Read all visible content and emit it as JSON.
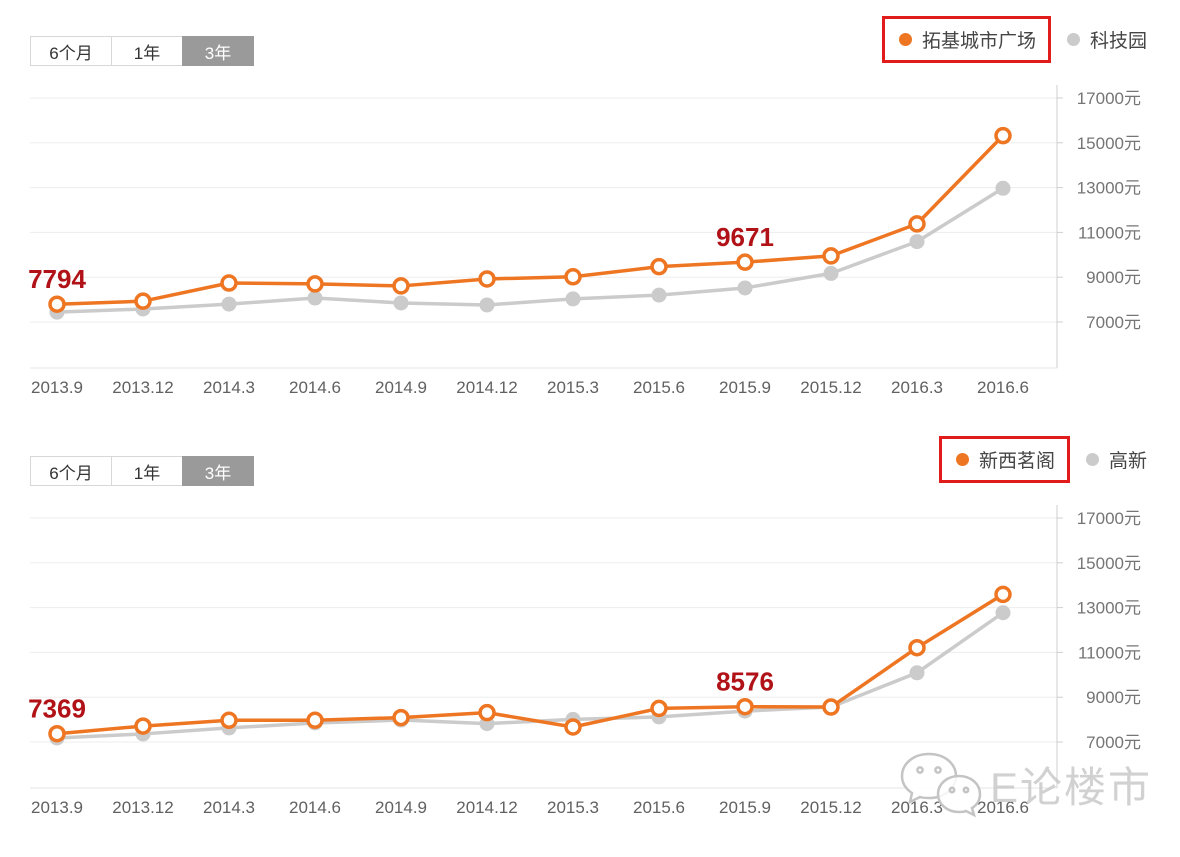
{
  "colors": {
    "primary_series": "#ee7623",
    "secondary_series": "#cbcbcb",
    "annotation_text": "#b01217",
    "highlight_box": "#e21b1b",
    "selected_tab_bg": "#9a9a9a"
  },
  "watermark": {
    "text": "E论楼市",
    "icon": "wechat-logo"
  },
  "charts": [
    {
      "tabs": {
        "options": [
          "6个月",
          "1年",
          "3年"
        ],
        "selected_index": 2
      },
      "legend": [
        {
          "label": "拓基城市广场",
          "color": "#ee7623",
          "highlighted": true
        },
        {
          "label": "科技园",
          "color": "#cbcbcb",
          "highlighted": false
        }
      ],
      "chart_data": {
        "type": "line",
        "x": [
          "2013.9",
          "2013.12",
          "2014.3",
          "2014.6",
          "2014.9",
          "2014.12",
          "2015.3",
          "2015.6",
          "2015.9",
          "2015.12",
          "2016.3",
          "2016.6"
        ],
        "y_ticks": [
          17000,
          15000,
          13000,
          11000,
          9000,
          7000
        ],
        "y_tick_labels": [
          "17000元",
          "15000元",
          "13000元",
          "11000元",
          "9000元",
          "7000元"
        ],
        "ylim": [
          5000,
          17600
        ],
        "y_axis_position": "right",
        "grid": true,
        "series": [
          {
            "name": "科技园",
            "color": "#cbcbcb",
            "marker": "filled",
            "values": [
              7440,
              7580,
              7800,
              8070,
              7850,
              7760,
              8030,
              8200,
              8520,
              9170,
              10590,
              12970
            ]
          },
          {
            "name": "拓基城市广场",
            "color": "#ee7623",
            "marker": "hollow",
            "values": [
              7794,
              7930,
              8740,
              8700,
              8610,
              8920,
              9020,
              9470,
              9671,
              9950,
              11380,
              15320
            ]
          }
        ],
        "annotations": [
          {
            "series_name": "拓基城市广场",
            "x_index": 0,
            "label": "7794"
          },
          {
            "series_name": "拓基城市广场",
            "x_index": 8,
            "label": "9671"
          }
        ]
      }
    },
    {
      "tabs": {
        "options": [
          "6个月",
          "1年",
          "3年"
        ],
        "selected_index": 2
      },
      "legend": [
        {
          "label": "新西茗阁",
          "color": "#ee7623",
          "highlighted": true
        },
        {
          "label": "高新",
          "color": "#cbcbcb",
          "highlighted": false
        }
      ],
      "chart_data": {
        "type": "line",
        "x": [
          "2013.9",
          "2013.12",
          "2014.3",
          "2014.6",
          "2014.9",
          "2014.12",
          "2015.3",
          "2015.6",
          "2015.9",
          "2015.12",
          "2016.3",
          "2016.6"
        ],
        "y_ticks": [
          17000,
          15000,
          13000,
          11000,
          9000,
          7000
        ],
        "y_tick_labels": [
          "17000元",
          "15000元",
          "13000元",
          "11000元",
          "9000元",
          "7000元"
        ],
        "ylim": [
          5000,
          17600
        ],
        "y_axis_position": "right",
        "grid": true,
        "series": [
          {
            "name": "高新",
            "color": "#cbcbcb",
            "marker": "filled",
            "values": [
              7180,
              7360,
              7630,
              7850,
              7980,
              7820,
              8010,
              8120,
              8380,
              8560,
              10090,
              12770
            ]
          },
          {
            "name": "新西茗阁",
            "color": "#ee7623",
            "marker": "hollow",
            "values": [
              7369,
              7710,
              7970,
              7970,
              8090,
              8310,
              7670,
              8500,
              8576,
              8560,
              11210,
              13590
            ]
          }
        ],
        "annotations": [
          {
            "series_name": "新西茗阁",
            "x_index": 0,
            "label": "7369"
          },
          {
            "series_name": "新西茗阁",
            "x_index": 8,
            "label": "8576"
          }
        ]
      }
    }
  ]
}
